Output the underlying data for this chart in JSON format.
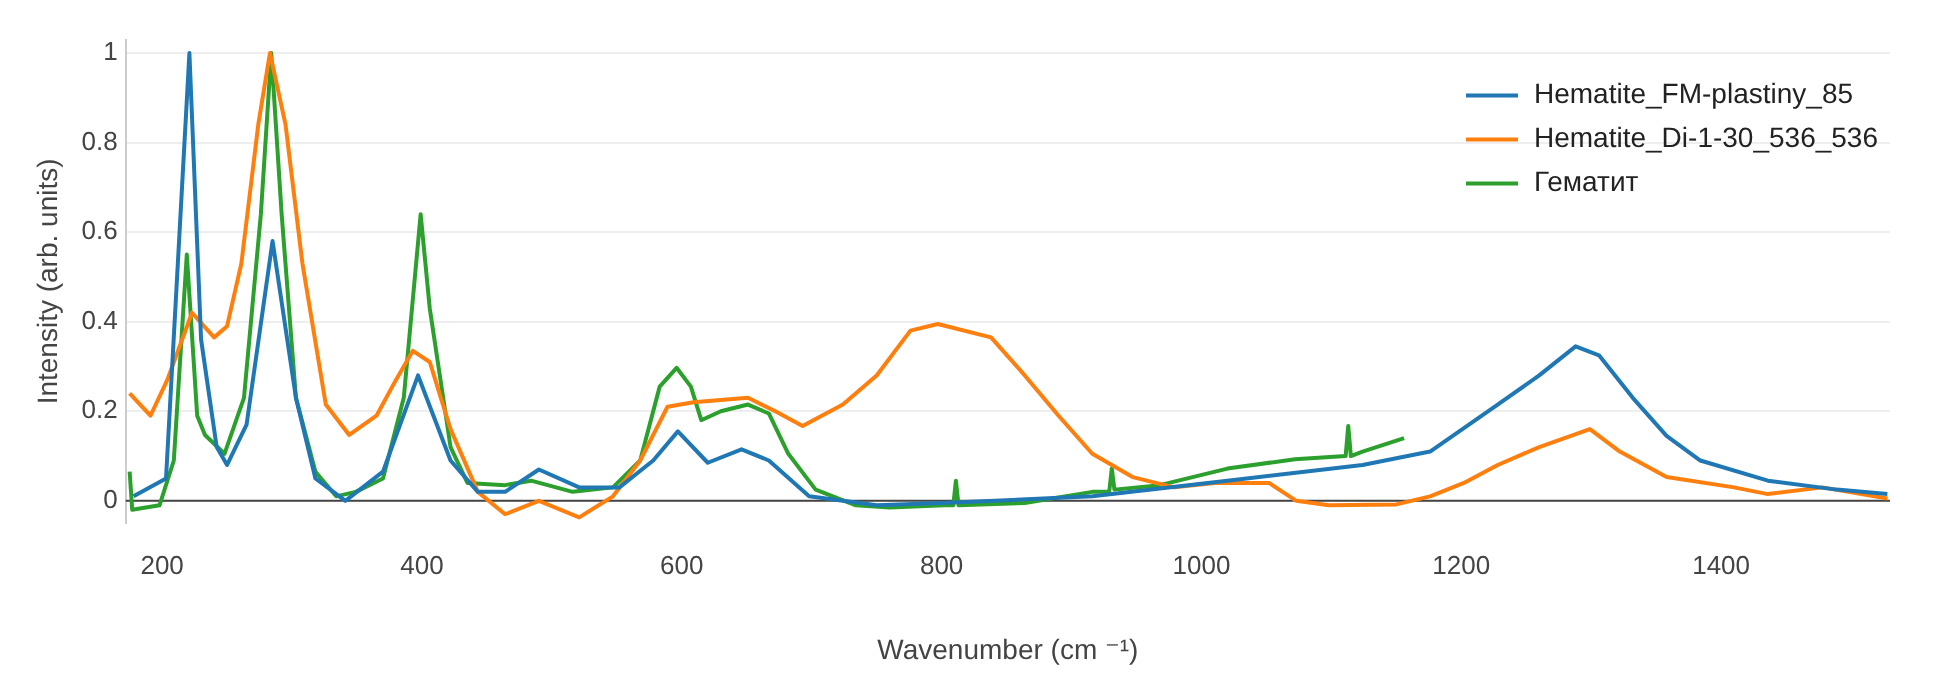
{
  "chart_data": {
    "type": "line",
    "xlabel": "Wavenumber (cm ⁻¹)",
    "ylabel": "Intensity (arb. units)",
    "xlim": [
      172,
      1530
    ],
    "ylim": [
      -0.05,
      1.03
    ],
    "xticks": [
      200,
      400,
      600,
      800,
      1000,
      1200,
      1400
    ],
    "yticks": [
      0,
      0.2,
      0.4,
      0.6,
      0.8,
      1
    ],
    "grid": "y",
    "legend": "top right",
    "marker": "none",
    "line_style": "solid",
    "series": [
      {
        "name": "Hematite_FM-plastiny_85",
        "color": "#1f77b4",
        "x": [
          178,
          203,
          221,
          230,
          242,
          250,
          265,
          285,
          303,
          318,
          341,
          370,
          397,
          422,
          443,
          464,
          490,
          521,
          552,
          578,
          597,
          620,
          646,
          667,
          698,
          750,
          800,
          916,
          1020,
          1124,
          1176,
          1228,
          1260,
          1288,
          1306,
          1332,
          1358,
          1384,
          1436,
          1489,
          1528
        ],
        "values": [
          0.01,
          0.05,
          1.0,
          0.36,
          0.12,
          0.08,
          0.17,
          0.58,
          0.23,
          0.05,
          0.0,
          0.065,
          0.28,
          0.09,
          0.02,
          0.02,
          0.07,
          0.03,
          0.03,
          0.09,
          0.155,
          0.085,
          0.115,
          0.09,
          0.01,
          -0.01,
          -0.005,
          0.01,
          0.045,
          0.08,
          0.11,
          0.215,
          0.28,
          0.345,
          0.325,
          0.23,
          0.145,
          0.09,
          0.045,
          0.025,
          0.015
        ]
      },
      {
        "name": "Hematite_Di-1-30_536_536",
        "color": "#ff7f0e",
        "x": [
          175,
          191,
          204,
          223,
          240,
          250,
          261,
          274,
          283,
          295,
          308,
          326,
          344,
          365,
          380,
          393,
          406,
          422,
          443,
          464,
          490,
          521,
          547,
          568,
          589,
          609,
          651,
          672,
          693,
          724,
          750,
          776,
          797,
          838,
          864,
          890,
          916,
          947,
          979,
          1010,
          1052,
          1073,
          1098,
          1150,
          1176,
          1202,
          1228,
          1260,
          1299,
          1322,
          1358,
          1410,
          1436,
          1478,
          1528
        ],
        "values": [
          0.24,
          0.19,
          0.27,
          0.42,
          0.365,
          0.39,
          0.53,
          0.84,
          1.0,
          0.84,
          0.53,
          0.215,
          0.147,
          0.19,
          0.27,
          0.335,
          0.31,
          0.16,
          0.02,
          -0.03,
          0.0,
          -0.037,
          0.01,
          0.09,
          0.21,
          0.22,
          0.23,
          0.2,
          0.167,
          0.215,
          0.28,
          0.38,
          0.395,
          0.365,
          0.28,
          0.19,
          0.105,
          0.053,
          0.03,
          0.04,
          0.04,
          0.0,
          -0.01,
          -0.008,
          0.01,
          0.04,
          0.08,
          0.12,
          0.16,
          0.11,
          0.053,
          0.03,
          0.015,
          0.03,
          0.005
        ]
      },
      {
        "name": "Гематит",
        "color": "#2ca02c",
        "x": [
          175,
          177,
          198,
          209,
          219,
          227,
          233,
          248,
          263,
          276,
          284,
          292,
          303,
          318,
          334,
          349,
          370,
          386,
          399,
          406,
          422,
          435,
          464,
          484,
          516,
          547,
          568,
          583,
          596,
          607,
          615,
          630,
          651,
          667,
          682,
          703,
          734,
          760,
          802,
          809,
          811,
          813,
          864,
          916,
          929,
          931,
          933,
          968,
          1020,
          1072,
          1111,
          1113,
          1115,
          1124,
          1156
        ],
        "values": [
          0.065,
          -0.02,
          -0.01,
          0.09,
          0.55,
          0.19,
          0.147,
          0.105,
          0.23,
          0.64,
          1.0,
          0.64,
          0.23,
          0.065,
          0.01,
          0.02,
          0.05,
          0.23,
          0.64,
          0.43,
          0.12,
          0.04,
          0.035,
          0.045,
          0.02,
          0.03,
          0.09,
          0.255,
          0.297,
          0.255,
          0.18,
          0.2,
          0.215,
          0.195,
          0.105,
          0.025,
          -0.01,
          -0.015,
          -0.01,
          -0.01,
          0.045,
          -0.01,
          -0.005,
          0.02,
          0.02,
          0.072,
          0.025,
          0.035,
          0.072,
          0.093,
          0.1,
          0.167,
          0.1,
          0.11,
          0.14
        ]
      }
    ]
  }
}
